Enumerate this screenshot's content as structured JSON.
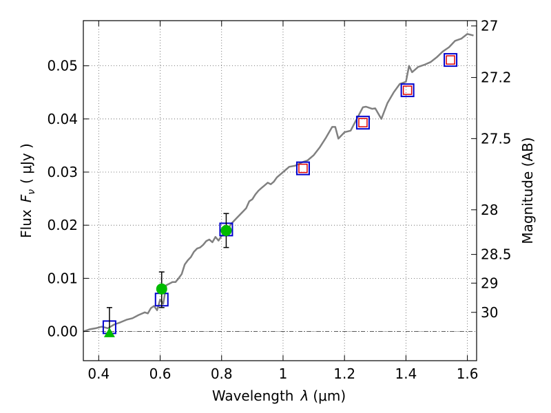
{
  "chart_data": {
    "type": "line",
    "xlabel": "Wavelength",
    "xlabel_symbol": "λ",
    "xlabel_unit": "(μm)",
    "ylabel": "Flux",
    "ylabel_symbol": "F",
    "ylabel_subscript": "ν",
    "ylabel_unit": "( μJy )",
    "y2label": "Magnitude (AB)",
    "xlim": [
      0.35,
      1.63
    ],
    "ylim": [
      -0.0055,
      0.0585
    ],
    "grid": true,
    "x_ticks": [
      {
        "value": 0.4,
        "label": "0.4"
      },
      {
        "value": 0.6,
        "label": "0.6"
      },
      {
        "value": 0.8,
        "label": "0.8"
      },
      {
        "value": 1.0,
        "label": "1"
      },
      {
        "value": 1.2,
        "label": "1.2"
      },
      {
        "value": 1.4,
        "label": "1.4"
      },
      {
        "value": 1.6,
        "label": "1.6"
      }
    ],
    "y_ticks": [
      {
        "value": 0.0,
        "label": "0.00"
      },
      {
        "value": 0.01,
        "label": "0.01"
      },
      {
        "value": 0.02,
        "label": "0.02"
      },
      {
        "value": 0.03,
        "label": "0.03"
      },
      {
        "value": 0.04,
        "label": "0.04"
      },
      {
        "value": 0.05,
        "label": "0.05"
      }
    ],
    "mag_ticks": [
      {
        "value": 27,
        "flux": 0.0575,
        "label": "27"
      },
      {
        "value": 27.2,
        "flux": 0.0478,
        "label": "27.2"
      },
      {
        "value": 27.5,
        "flux": 0.0363,
        "label": "27.5"
      },
      {
        "value": 28,
        "flux": 0.0229,
        "label": "28"
      },
      {
        "value": 28.5,
        "flux": 0.0145,
        "label": "28.5"
      },
      {
        "value": 29,
        "flux": 0.0091,
        "label": "29"
      },
      {
        "value": 30,
        "flux": 0.0036,
        "label": "30"
      }
    ],
    "series": [
      {
        "name": "model spectrum",
        "kind": "line",
        "color": "#808080",
        "x": [
          0.35,
          0.37,
          0.39,
          0.41,
          0.43,
          0.45,
          0.47,
          0.49,
          0.51,
          0.53,
          0.55,
          0.56,
          0.57,
          0.58,
          0.59,
          0.6,
          0.61,
          0.62,
          0.63,
          0.64,
          0.65,
          0.66,
          0.67,
          0.68,
          0.69,
          0.7,
          0.71,
          0.72,
          0.73,
          0.74,
          0.75,
          0.76,
          0.77,
          0.78,
          0.79,
          0.8,
          0.81,
          0.82,
          0.83,
          0.84,
          0.85,
          0.86,
          0.87,
          0.88,
          0.89,
          0.9,
          0.91,
          0.92,
          0.93,
          0.94,
          0.95,
          0.96,
          0.97,
          0.98,
          1.0,
          1.02,
          1.04,
          1.06,
          1.08,
          1.1,
          1.12,
          1.14,
          1.16,
          1.17,
          1.18,
          1.2,
          1.22,
          1.24,
          1.26,
          1.27,
          1.28,
          1.29,
          1.3,
          1.32,
          1.34,
          1.36,
          1.38,
          1.4,
          1.41,
          1.42,
          1.44,
          1.46,
          1.48,
          1.5,
          1.52,
          1.54,
          1.56,
          1.58,
          1.6,
          1.62
        ],
        "y": [
          0.0,
          0.0004,
          0.0006,
          0.0009,
          0.0006,
          0.0013,
          0.0017,
          0.0022,
          0.0025,
          0.0031,
          0.0036,
          0.0034,
          0.0044,
          0.0048,
          0.004,
          0.006,
          0.0052,
          0.0087,
          0.009,
          0.0093,
          0.0093,
          0.01,
          0.0108,
          0.0126,
          0.0134,
          0.014,
          0.015,
          0.0156,
          0.0158,
          0.0163,
          0.017,
          0.0173,
          0.0168,
          0.0178,
          0.0171,
          0.018,
          0.0186,
          0.019,
          0.0202,
          0.0208,
          0.0214,
          0.022,
          0.0226,
          0.0232,
          0.0245,
          0.0249,
          0.0258,
          0.0265,
          0.027,
          0.0275,
          0.028,
          0.0277,
          0.0282,
          0.029,
          0.03,
          0.031,
          0.0312,
          0.0318,
          0.0322,
          0.0332,
          0.0347,
          0.0365,
          0.0385,
          0.0385,
          0.0363,
          0.0375,
          0.0378,
          0.04,
          0.0422,
          0.0423,
          0.0421,
          0.0419,
          0.042,
          0.04,
          0.043,
          0.045,
          0.0466,
          0.047,
          0.05,
          0.0488,
          0.0498,
          0.0502,
          0.0507,
          0.0516,
          0.0527,
          0.0535,
          0.0547,
          0.0551,
          0.056,
          0.0557
        ]
      },
      {
        "name": "blue squares",
        "kind": "square",
        "color": "#0000cc",
        "x": [
          0.435,
          0.605,
          0.815,
          1.065,
          1.26,
          1.405,
          1.545
        ],
        "y": [
          0.0008,
          0.006,
          0.0192,
          0.0307,
          0.0393,
          0.0454,
          0.0511
        ]
      },
      {
        "name": "red squares",
        "kind": "square",
        "color": "#dd0000",
        "x": [
          1.065,
          1.26,
          1.405,
          1.545
        ],
        "y": [
          0.0307,
          0.0393,
          0.0454,
          0.0511
        ]
      },
      {
        "name": "green circles",
        "kind": "circle",
        "color": "#00bb00",
        "x": [
          0.605,
          0.815
        ],
        "y": [
          0.008,
          0.019
        ],
        "err_low": [
          0.0035,
          0.0032
        ],
        "err_high": [
          0.0032,
          0.0032
        ]
      },
      {
        "name": "green triangle",
        "kind": "triangle",
        "color": "#00bb00",
        "x": [
          0.435
        ],
        "y": [
          -0.0003
        ],
        "err_low": [
          0.0003
        ],
        "err_high": [
          0.0048
        ]
      }
    ],
    "zero_line": {
      "y": 0.0,
      "style": "dashdot"
    }
  }
}
